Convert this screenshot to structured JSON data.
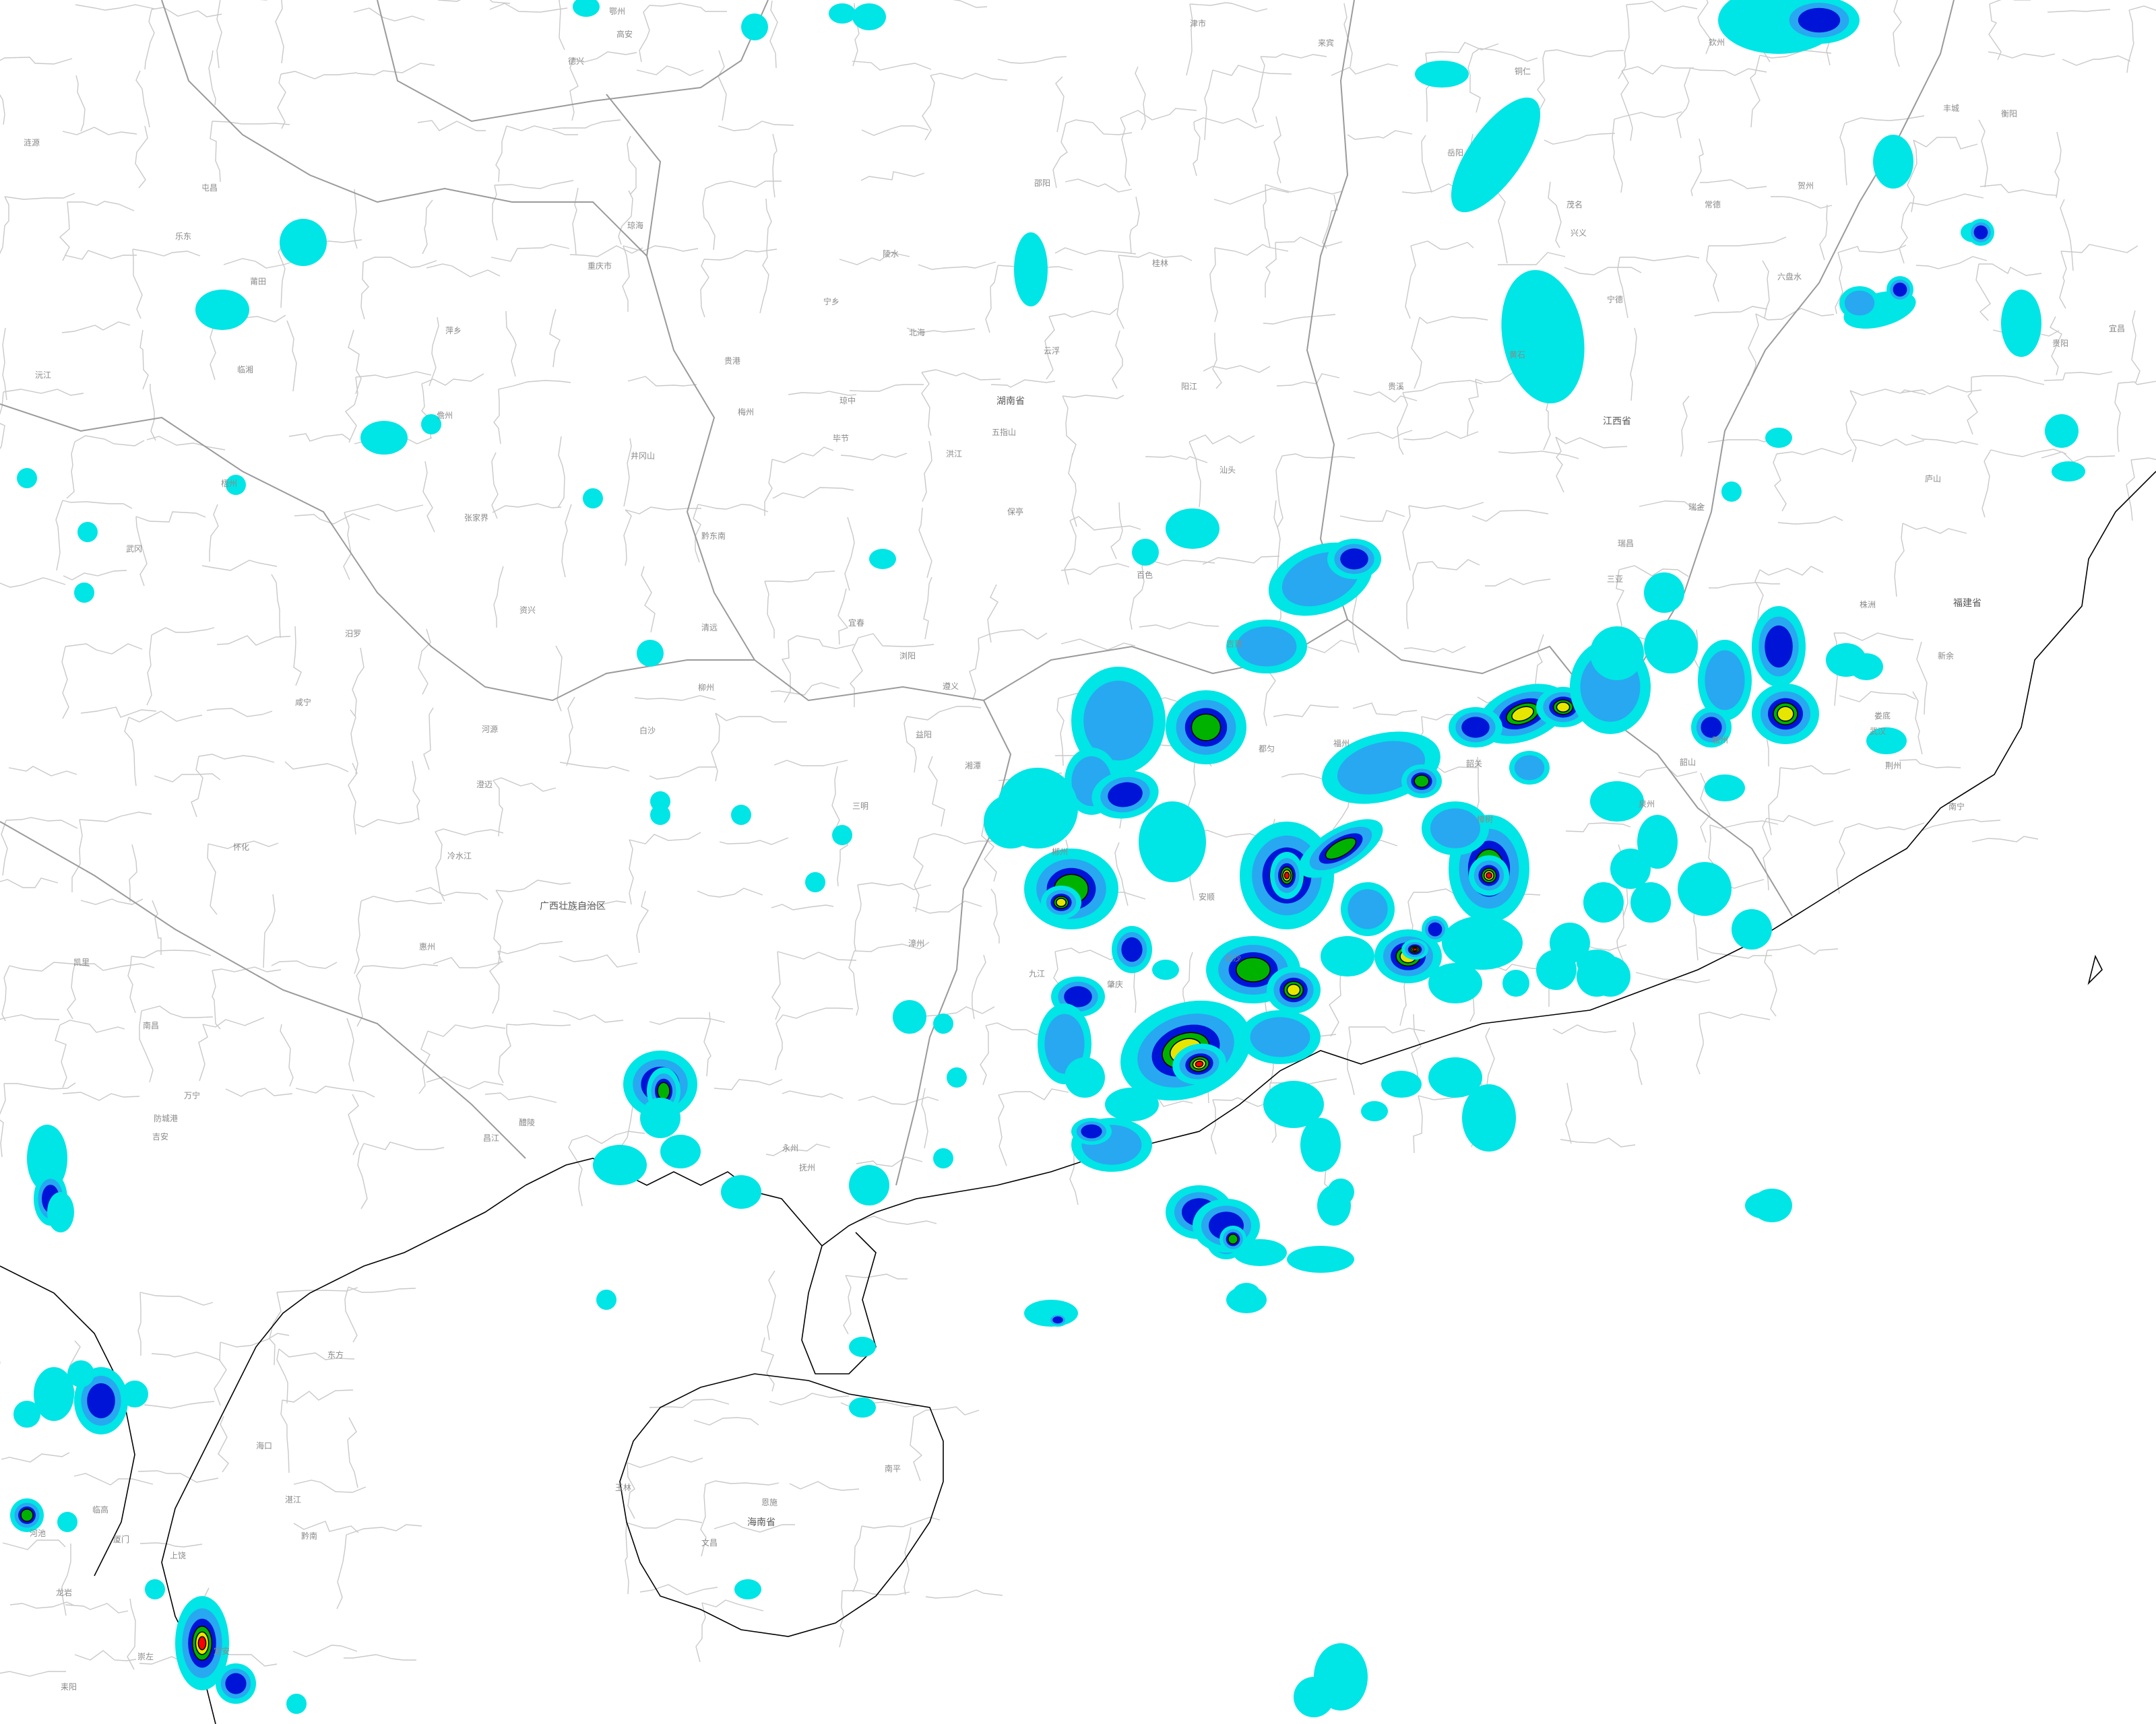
{
  "map": {
    "colors": {
      "background": "#ffffff",
      "admin_border": "#c9c9c9",
      "province_border": "#9a9a9a",
      "coastline": "#000000",
      "label": "#8a8a8a",
      "province_label": "#5a5a5a",
      "intensity_levels": [
        "#00e5e5",
        "#28a8f0",
        "#0014d8",
        "#00b200",
        "#e6e600",
        "#ff0000"
      ]
    },
    "labels": {
      "province_labels": [
        "湖南省",
        "江西省",
        "福建省",
        "广西壮族自治区",
        "海南省"
      ],
      "city_labels": [
        "重庆市",
        "贵阳",
        "南宁",
        "桂林",
        "柳州",
        "梧州",
        "玉林",
        "钦州",
        "北海",
        "防城港",
        "湛江",
        "茂名",
        "阳江",
        "云浮",
        "肇庆",
        "韶关",
        "清远",
        "河源",
        "梅州",
        "惠州",
        "汕头",
        "漳州",
        "厦门",
        "赣州",
        "吉安",
        "萍乡",
        "郴州",
        "永州",
        "衡阳",
        "长沙",
        "益阳",
        "常德",
        "怀化",
        "张家界",
        "南昌",
        "抚州",
        "福州",
        "三明",
        "湘潭",
        "株洲",
        "娄底",
        "邵阳",
        "岳阳",
        "宜春",
        "新余",
        "上饶",
        "九江",
        "南平",
        "龙岩",
        "宁德",
        "莆田",
        "泉州",
        "铜仁",
        "遵义",
        "毕节",
        "六盘水",
        "安顺",
        "都匀",
        "凯里",
        "兴义",
        "百色",
        "河池",
        "来宾",
        "贵港",
        "崇左",
        "贺州",
        "海口",
        "三亚",
        "儋州",
        "琼海",
        "万宁",
        "文昌",
        "五指山",
        "东方",
        "乐东",
        "陵水",
        "定安",
        "屯昌",
        "澄迈",
        "临高",
        "昌江",
        "白沙",
        "琼中",
        "保亭",
        "黔东南",
        "黔南",
        "恩施",
        "宜昌",
        "荆州",
        "武汉",
        "黄石",
        "咸宁",
        "鄂州",
        "宁乡",
        "浏阳",
        "醴陵",
        "韶山",
        "耒阳",
        "资兴",
        "冷水江",
        "涟源",
        "武冈",
        "洪江",
        "吉首",
        "津市",
        "汨罗",
        "临湘",
        "沅江",
        "瑞金",
        "井冈山",
        "丰城",
        "樟树",
        "高安",
        "贵溪",
        "德兴",
        "瑞昌",
        "庐山"
      ]
    },
    "chart_data": {
      "type": "heatmap",
      "description_levels": "precipitation radar echo intensity, 6 color classes",
      "levels": [
        "1",
        "2",
        "3",
        "4",
        "5",
        "6"
      ]
    }
  }
}
